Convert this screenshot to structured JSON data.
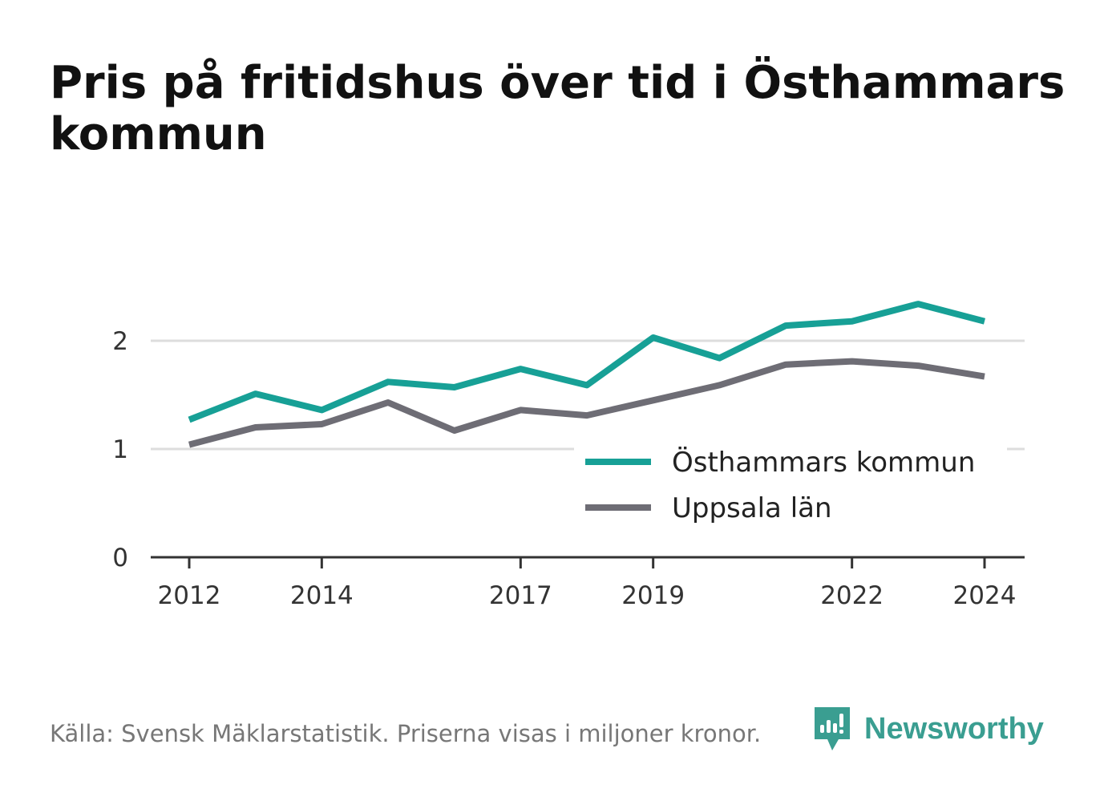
{
  "title": "Pris på fritidshus över tid i Östhammars kommun",
  "footer": {
    "source": "Källa: Svensk Mäklarstatistik. Priserna visas i miljoner kronor.",
    "brand": "Newsworthy",
    "brand_icon": "newsworthy-logo-icon"
  },
  "colors": {
    "series_1": "#17a096",
    "series_2": "#6e6d75",
    "grid": "#dddddd",
    "axis": "#333333",
    "brand": "#3a9e91"
  },
  "chart_data": {
    "type": "line",
    "title": "Pris på fritidshus över tid i Östhammars kommun",
    "xlabel": "",
    "ylabel": "",
    "x": [
      2012,
      2013,
      2014,
      2015,
      2016,
      2017,
      2018,
      2019,
      2020,
      2021,
      2022,
      2023,
      2024
    ],
    "x_ticks": [
      "2012",
      "2014",
      "2017",
      "2019",
      "2022",
      "2024"
    ],
    "x_tick_values": [
      2012,
      2014,
      2017,
      2019,
      2022,
      2024
    ],
    "y_ticks": [
      "0",
      "1",
      "2"
    ],
    "y_tick_values": [
      0,
      1,
      2
    ],
    "ylim": [
      0,
      2.5
    ],
    "grid": true,
    "legend_position": "bottom-right",
    "series": [
      {
        "name": "Östhammars kommun",
        "values": [
          1.27,
          1.51,
          1.36,
          1.62,
          1.57,
          1.74,
          1.59,
          2.03,
          1.84,
          2.14,
          2.18,
          2.34,
          2.18
        ]
      },
      {
        "name": "Uppsala län",
        "values": [
          1.04,
          1.2,
          1.23,
          1.43,
          1.17,
          1.36,
          1.31,
          1.45,
          1.59,
          1.78,
          1.81,
          1.77,
          1.67
        ]
      }
    ]
  }
}
